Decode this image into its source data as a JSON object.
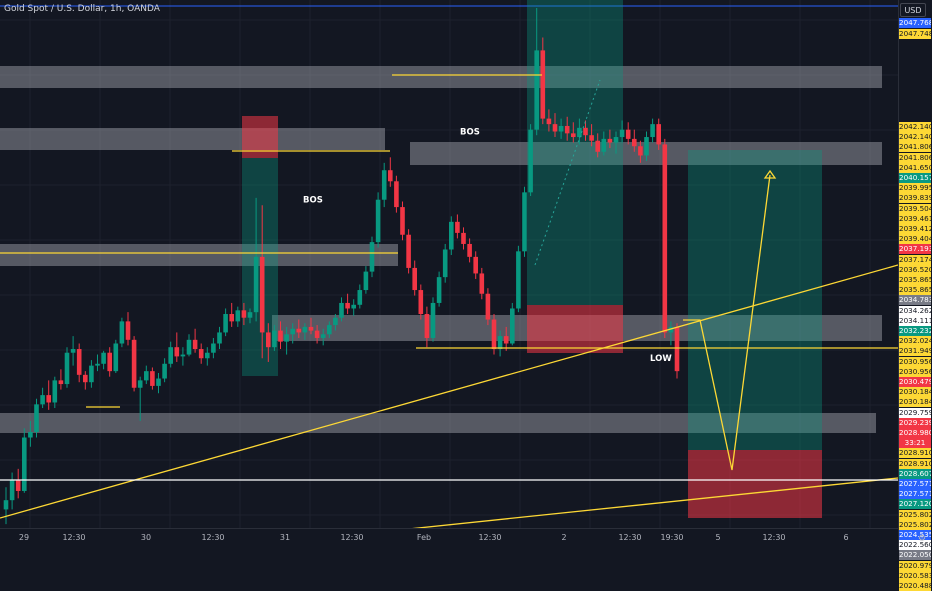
{
  "title": "Gold Spot / U.S. Dollar, 1h, OANDA",
  "currency": "USD",
  "chart_data": {
    "type": "candlestick",
    "instrument": "Gold Spot / U.S. Dollar",
    "timeframe": "1h",
    "source": "OANDA",
    "ylim": [
      2020.5,
      2048.6
    ],
    "x_ticks": [
      "29",
      "12:30",
      "30",
      "12:30",
      "31",
      "12:30",
      "Feb",
      "12:30",
      "2",
      "12:30",
      "19:30",
      "5",
      "12:30",
      "6"
    ],
    "candles": [
      [
        2021.4,
        2022.6,
        2020.6,
        2021.9
      ],
      [
        2021.9,
        2023.4,
        2021.4,
        2023.0
      ],
      [
        2023.0,
        2023.6,
        2022.0,
        2022.4
      ],
      [
        2022.4,
        2025.8,
        2022.3,
        2025.3
      ],
      [
        2025.3,
        2026.2,
        2024.8,
        2025.6
      ],
      [
        2025.6,
        2027.4,
        2025.3,
        2027.1
      ],
      [
        2027.1,
        2028.0,
        2026.9,
        2027.6
      ],
      [
        2027.6,
        2028.4,
        2026.8,
        2027.2
      ],
      [
        2027.2,
        2028.6,
        2026.9,
        2028.4
      ],
      [
        2028.4,
        2029.0,
        2027.9,
        2028.2
      ],
      [
        2028.2,
        2030.2,
        2028.0,
        2029.9
      ],
      [
        2029.9,
        2030.8,
        2029.2,
        2030.1
      ],
      [
        2030.1,
        2030.4,
        2028.3,
        2028.7
      ],
      [
        2028.7,
        2028.9,
        2027.9,
        2028.3
      ],
      [
        2028.3,
        2029.5,
        2028.0,
        2029.2
      ],
      [
        2029.2,
        2029.8,
        2028.9,
        2029.3
      ],
      [
        2029.3,
        2030.0,
        2029.0,
        2029.9
      ],
      [
        2029.9,
        2030.2,
        2028.6,
        2028.9
      ],
      [
        2028.9,
        2030.6,
        2028.8,
        2030.4
      ],
      [
        2030.4,
        2031.8,
        2030.2,
        2031.6
      ],
      [
        2031.6,
        2032.1,
        2030.3,
        2030.6
      ],
      [
        2030.6,
        2030.8,
        2027.8,
        2028.0
      ],
      [
        2028.0,
        2028.6,
        2026.2,
        2028.4
      ],
      [
        2028.4,
        2029.2,
        2028.2,
        2028.9
      ],
      [
        2028.9,
        2029.1,
        2027.9,
        2028.1
      ],
      [
        2028.1,
        2028.8,
        2027.7,
        2028.5
      ],
      [
        2028.5,
        2029.6,
        2028.3,
        2029.3
      ],
      [
        2029.3,
        2030.5,
        2029.1,
        2030.2
      ],
      [
        2030.2,
        2031.0,
        2029.4,
        2029.7
      ],
      [
        2029.7,
        2030.2,
        2029.2,
        2029.8
      ],
      [
        2029.8,
        2030.9,
        2029.7,
        2030.6
      ],
      [
        2030.6,
        2031.2,
        2029.9,
        2030.1
      ],
      [
        2030.1,
        2030.4,
        2029.3,
        2029.6
      ],
      [
        2029.6,
        2030.2,
        2029.2,
        2029.9
      ],
      [
        2029.9,
        2030.7,
        2029.6,
        2030.4
      ],
      [
        2030.4,
        2031.3,
        2030.1,
        2031.0
      ],
      [
        2031.0,
        2032.3,
        2030.8,
        2032.0
      ],
      [
        2032.0,
        2032.6,
        2031.3,
        2031.6
      ],
      [
        2031.6,
        2032.4,
        2031.3,
        2032.2
      ],
      [
        2032.2,
        2032.6,
        2031.4,
        2031.8
      ],
      [
        2031.8,
        2032.3,
        2031.5,
        2032.1
      ],
      [
        2032.1,
        2038.3,
        2031.6,
        2035.1
      ],
      [
        2035.1,
        2037.9,
        2029.6,
        2031.0
      ],
      [
        2031.0,
        2031.5,
        2029.4,
        2030.2
      ],
      [
        2030.2,
        2031.4,
        2030.0,
        2031.1
      ],
      [
        2031.1,
        2031.6,
        2030.1,
        2030.5
      ],
      [
        2030.5,
        2031.3,
        2029.8,
        2030.9
      ],
      [
        2030.9,
        2031.5,
        2030.4,
        2031.2
      ],
      [
        2031.2,
        2031.7,
        2030.7,
        2031.0
      ],
      [
        2031.0,
        2031.5,
        2030.6,
        2031.3
      ],
      [
        2031.3,
        2031.8,
        2030.9,
        2031.1
      ],
      [
        2031.1,
        2031.4,
        2030.4,
        2030.7
      ],
      [
        2030.7,
        2031.2,
        2030.3,
        2030.9
      ],
      [
        2030.9,
        2031.6,
        2030.7,
        2031.4
      ],
      [
        2031.4,
        2032.0,
        2031.1,
        2031.8
      ],
      [
        2031.8,
        2032.9,
        2031.6,
        2032.6
      ],
      [
        2032.6,
        2033.1,
        2032.0,
        2032.3
      ],
      [
        2032.3,
        2032.8,
        2031.9,
        2032.5
      ],
      [
        2032.5,
        2033.6,
        2032.3,
        2033.3
      ],
      [
        2033.3,
        2034.6,
        2033.1,
        2034.3
      ],
      [
        2034.3,
        2036.2,
        2034.0,
        2035.9
      ],
      [
        2035.9,
        2038.6,
        2035.6,
        2038.2
      ],
      [
        2038.2,
        2040.2,
        2037.8,
        2039.8
      ],
      [
        2039.8,
        2040.5,
        2038.9,
        2039.2
      ],
      [
        2039.2,
        2039.5,
        2037.5,
        2037.8
      ],
      [
        2037.8,
        2038.1,
        2036.0,
        2036.3
      ],
      [
        2036.3,
        2036.6,
        2034.2,
        2034.5
      ],
      [
        2034.5,
        2034.9,
        2033.0,
        2033.3
      ],
      [
        2033.3,
        2033.6,
        2031.7,
        2032.0
      ],
      [
        2032.0,
        2032.4,
        2030.2,
        2030.7
      ],
      [
        2030.7,
        2032.9,
        2030.5,
        2032.6
      ],
      [
        2032.6,
        2034.3,
        2032.4,
        2034.0
      ],
      [
        2034.0,
        2035.8,
        2033.7,
        2035.5
      ],
      [
        2035.5,
        2037.3,
        2035.2,
        2037.0
      ],
      [
        2037.0,
        2037.4,
        2036.1,
        2036.4
      ],
      [
        2036.4,
        2036.7,
        2035.5,
        2035.8
      ],
      [
        2035.8,
        2036.1,
        2034.8,
        2035.1
      ],
      [
        2035.1,
        2035.4,
        2033.9,
        2034.2
      ],
      [
        2034.2,
        2034.5,
        2032.8,
        2033.1
      ],
      [
        2033.1,
        2033.4,
        2031.4,
        2031.7
      ],
      [
        2031.7,
        2032.0,
        2029.8,
        2030.1
      ],
      [
        2030.1,
        2031.1,
        2029.7,
        2030.8
      ],
      [
        2030.8,
        2031.3,
        2030.0,
        2030.4
      ],
      [
        2030.4,
        2032.6,
        2030.3,
        2032.3
      ],
      [
        2032.3,
        2035.7,
        2032.1,
        2035.4
      ],
      [
        2035.4,
        2038.9,
        2035.1,
        2038.6
      ],
      [
        2038.6,
        2042.3,
        2038.4,
        2042.0
      ],
      [
        2042.0,
        2048.6,
        2041.7,
        2046.3
      ],
      [
        2046.3,
        2047.0,
        2042.3,
        2042.6
      ],
      [
        2042.6,
        2043.1,
        2041.9,
        2042.3
      ],
      [
        2042.3,
        2042.9,
        2041.6,
        2041.9
      ],
      [
        2041.9,
        2042.6,
        2041.5,
        2042.2
      ],
      [
        2042.2,
        2042.7,
        2041.4,
        2041.8
      ],
      [
        2041.8,
        2042.4,
        2041.3,
        2041.6
      ],
      [
        2041.6,
        2042.6,
        2041.2,
        2042.1
      ],
      [
        2042.1,
        2042.5,
        2041.4,
        2041.7
      ],
      [
        2041.7,
        2042.3,
        2041.1,
        2041.4
      ],
      [
        2041.4,
        2041.8,
        2040.5,
        2040.8
      ],
      [
        2040.8,
        2041.9,
        2040.6,
        2041.5
      ],
      [
        2041.5,
        2042.0,
        2041.0,
        2041.3
      ],
      [
        2041.3,
        2041.9,
        2040.7,
        2041.6
      ],
      [
        2041.6,
        2042.5,
        2041.3,
        2042.0
      ],
      [
        2042.0,
        2042.4,
        2041.2,
        2041.5
      ],
      [
        2041.5,
        2042.0,
        2040.8,
        2041.1
      ],
      [
        2041.1,
        2041.4,
        2040.2,
        2040.6
      ],
      [
        2040.6,
        2041.9,
        2040.3,
        2041.6
      ],
      [
        2041.6,
        2042.6,
        2041.3,
        2042.3
      ],
      [
        2042.3,
        2042.6,
        2040.9,
        2041.2
      ],
      [
        2041.2,
        2041.5,
        2030.7,
        2031.0
      ],
      [
        2031.0,
        2031.6,
        2030.3,
        2031.3
      ],
      [
        2031.3,
        2031.5,
        2028.5,
        2028.9
      ]
    ],
    "annotations": [
      {
        "type": "label",
        "text": "BOS",
        "price": 2041.9
      },
      {
        "type": "label",
        "text": "BOS",
        "price": 2038.2
      },
      {
        "type": "label",
        "text": "LOW",
        "price": 2029.6
      }
    ],
    "price_tags": [
      {
        "price": 2047.768,
        "text": "2047.768",
        "bg": "#2962ff",
        "fg": "#ffffff"
      },
      {
        "price": 2047.748,
        "text": "2047.748",
        "bg": "#fdd835",
        "fg": "#131722"
      },
      {
        "price": 2042.14,
        "text": "2042.140",
        "bg": "#fdd835",
        "fg": "#131722"
      },
      {
        "price": 2042.14,
        "text": "2042.140",
        "bg": "#fdd835",
        "fg": "#131722"
      },
      {
        "price": 2041.806,
        "text": "2041.806",
        "bg": "#fdd835",
        "fg": "#131722"
      },
      {
        "price": 2041.806,
        "text": "2041.806",
        "bg": "#fdd835",
        "fg": "#131722"
      },
      {
        "price": 2041.65,
        "text": "2041.650",
        "bg": "#fdd835",
        "fg": "#131722"
      },
      {
        "price": 2040.157,
        "text": "2040.157",
        "bg": "#089981",
        "fg": "#ffffff"
      },
      {
        "price": 2039.995,
        "text": "2039.995",
        "bg": "#fdd835",
        "fg": "#131722"
      },
      {
        "price": 2039.839,
        "text": "2039.839",
        "bg": "#fdd835",
        "fg": "#131722"
      },
      {
        "price": 2039.504,
        "text": "2039.504",
        "bg": "#fdd835",
        "fg": "#131722"
      },
      {
        "price": 2039.461,
        "text": "2039.461",
        "bg": "#fdd835",
        "fg": "#131722"
      },
      {
        "price": 2039.412,
        "text": "2039.412",
        "bg": "#fdd835",
        "fg": "#131722"
      },
      {
        "price": 2039.404,
        "text": "2039.404",
        "bg": "#fdd835",
        "fg": "#131722"
      },
      {
        "price": 2037.193,
        "text": "2037.193",
        "bg": "#f23645",
        "fg": "#ffffff"
      },
      {
        "price": 2037.174,
        "text": "2037.174",
        "bg": "#fdd835",
        "fg": "#131722"
      },
      {
        "price": 2036.52,
        "text": "2036.520",
        "bg": "#fdd835",
        "fg": "#131722"
      },
      {
        "price": 2035.865,
        "text": "2035.865",
        "bg": "#fdd835",
        "fg": "#131722"
      },
      {
        "price": 2035.865,
        "text": "2035.865",
        "bg": "#fdd835",
        "fg": "#131722"
      },
      {
        "price": 2034.783,
        "text": "2034.783",
        "bg": "#787b86",
        "fg": "#ffffff"
      },
      {
        "price": 2034.262,
        "text": "2034.262",
        "bg": "#ffffff",
        "fg": "#131722"
      },
      {
        "price": 2034.111,
        "text": "2034.111",
        "bg": "#ffffff",
        "fg": "#131722"
      },
      {
        "price": 2032.232,
        "text": "2032.232",
        "bg": "#089981",
        "fg": "#ffffff"
      },
      {
        "price": 2032.024,
        "text": "2032.024",
        "bg": "#fdd835",
        "fg": "#131722"
      },
      {
        "price": 2031.949,
        "text": "2031.949",
        "bg": "#fdd835",
        "fg": "#131722"
      },
      {
        "price": 2030.956,
        "text": "2030.956",
        "bg": "#fdd835",
        "fg": "#131722"
      },
      {
        "price": 2030.956,
        "text": "2030.956",
        "bg": "#fdd835",
        "fg": "#131722"
      },
      {
        "price": 2030.479,
        "text": "2030.479",
        "bg": "#f23645",
        "fg": "#ffffff"
      },
      {
        "price": 2030.184,
        "text": "2030.184",
        "bg": "#fdd835",
        "fg": "#131722"
      },
      {
        "price": 2030.184,
        "text": "2030.184",
        "bg": "#fdd835",
        "fg": "#131722"
      },
      {
        "price": 2029.759,
        "text": "2029.759",
        "bg": "#ffffff",
        "fg": "#131722"
      },
      {
        "price": 2029.239,
        "text": "2029.239",
        "bg": "#f23645",
        "fg": "#ffffff"
      },
      {
        "price": 2028.98,
        "text": "2028.980",
        "bg": "#f23645",
        "fg": "#ffffff"
      },
      {
        "price": 2028.98,
        "text": "33:21",
        "bg": "#f23645",
        "fg": "#ffffff"
      },
      {
        "price": 2028.91,
        "text": "2028.910",
        "bg": "#fdd835",
        "fg": "#131722"
      },
      {
        "price": 2028.91,
        "text": "2028.910",
        "bg": "#fdd835",
        "fg": "#131722"
      },
      {
        "price": 2028.607,
        "text": "2028.607",
        "bg": "#089981",
        "fg": "#ffffff"
      },
      {
        "price": 2027.571,
        "text": "2027.571",
        "bg": "#2962ff",
        "fg": "#ffffff"
      },
      {
        "price": 2027.571,
        "text": "2027.571",
        "bg": "#2962ff",
        "fg": "#ffffff"
      },
      {
        "price": 2027.12,
        "text": "2027.120",
        "bg": "#089981",
        "fg": "#ffffff"
      },
      {
        "price": 2025.802,
        "text": "2025.802",
        "bg": "#fdd835",
        "fg": "#131722"
      },
      {
        "price": 2025.802,
        "text": "2025.802",
        "bg": "#fdd835",
        "fg": "#131722"
      },
      {
        "price": 2024.535,
        "text": "2024.535",
        "bg": "#2962ff",
        "fg": "#ffffff"
      },
      {
        "price": 2022.56,
        "text": "2022.560",
        "bg": "#ffffff",
        "fg": "#131722"
      },
      {
        "price": 2022.05,
        "text": "2022.050",
        "bg": "#787b86",
        "fg": "#ffffff"
      },
      {
        "price": 2020.979,
        "text": "2020.979",
        "bg": "#fdd835",
        "fg": "#131722"
      },
      {
        "price": 2020.583,
        "text": "2020.583",
        "bg": "#fdd835",
        "fg": "#131722"
      },
      {
        "price": 2020.488,
        "text": "2020.488",
        "bg": "#fdd835",
        "fg": "#131722"
      }
    ],
    "colors": {
      "up": "#089981",
      "down": "#f23645",
      "background": "#131722",
      "annotation": "#fdd835"
    }
  }
}
